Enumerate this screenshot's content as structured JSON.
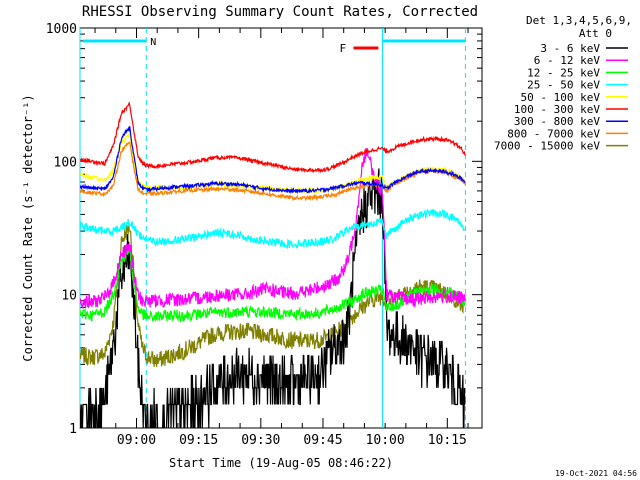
{
  "chart_data": {
    "type": "line",
    "title": "RHESSI Observing Summary Count Rates, Corrected",
    "xlabel": "Start Time (19-Aug-05 08:46:22)",
    "ylabel": "Corrected Count Rate (s⁻¹ detector⁻¹)",
    "y_scale": "log",
    "ylim": [
      1,
      1000
    ],
    "y_ticks": [
      "1",
      "10",
      "100",
      "1000"
    ],
    "x_ticks": [
      "09:00",
      "09:15",
      "09:30",
      "09:45",
      "10:00",
      "10:15"
    ],
    "xlim_minutes_after_start": [
      0,
      97
    ],
    "legend_header": [
      "Det 1,3,4,5,6,9,",
      "Att 0"
    ],
    "legend_position": "right",
    "footer_date": "19-Oct-2021 04:56",
    "annotations": {
      "night_label": "N",
      "flare_label": "F",
      "night_bars_minutes": [
        [
          0,
          16
        ],
        [
          73,
          93
        ]
      ],
      "flare_bar_minutes": [
        66,
        72
      ],
      "night_color": "#00e5ff",
      "flare_color": "#ff0000"
    },
    "series": [
      {
        "name": "3 - 6 keV",
        "color": "#000000",
        "x": [
          0,
          3,
          6,
          8,
          10,
          12,
          13,
          14,
          15,
          16,
          18,
          20,
          22,
          25,
          28,
          30,
          32,
          35,
          38,
          40,
          42,
          45,
          48,
          50,
          52,
          55,
          58,
          60,
          62,
          64,
          65,
          66,
          68,
          70,
          72,
          73,
          74,
          75,
          77,
          80,
          82,
          85,
          88,
          90,
          92,
          93
        ],
        "y": [
          1.2,
          1.3,
          1.6,
          4,
          14,
          20,
          9,
          3,
          1.5,
          1,
          1.2,
          1.1,
          1.3,
          1.4,
          1.5,
          1.8,
          2,
          2.3,
          2.5,
          2.6,
          2.5,
          2.4,
          2.2,
          2.1,
          2.2,
          2.3,
          2.6,
          3.5,
          4.2,
          5,
          7,
          15,
          40,
          55,
          57,
          55,
          5.5,
          5,
          4.8,
          4.2,
          3.4,
          3.2,
          2.8,
          2.4,
          1.7,
          1.4
        ]
      },
      {
        "name": "6 - 12 keV",
        "color": "#ff00ff",
        "x": [
          0,
          3,
          6,
          8,
          10,
          12,
          13,
          14,
          15,
          16,
          18,
          20,
          22,
          25,
          28,
          30,
          32,
          35,
          38,
          40,
          42,
          45,
          48,
          50,
          52,
          55,
          58,
          60,
          62,
          64,
          65,
          66,
          67,
          68,
          69,
          70,
          71,
          72,
          73,
          74,
          75,
          77,
          80,
          82,
          85,
          88,
          90,
          92,
          93
        ],
        "y": [
          9,
          8.8,
          9.5,
          12,
          20,
          24,
          14,
          10,
          9,
          9,
          9,
          9,
          9.2,
          9.2,
          9.4,
          9.6,
          9.8,
          10,
          10,
          10,
          10.5,
          11,
          10.5,
          10.2,
          10.3,
          10.6,
          11.5,
          12,
          13,
          16,
          20,
          28,
          45,
          90,
          120,
          100,
          75,
          65,
          62,
          10,
          9.8,
          9.5,
          9.2,
          9.3,
          9.6,
          9.8,
          9.6,
          9.5,
          9
        ]
      },
      {
        "name": "12 - 25 keV",
        "color": "#00ff00",
        "x": [
          0,
          3,
          6,
          8,
          10,
          12,
          13,
          14,
          15,
          16,
          18,
          20,
          22,
          25,
          28,
          30,
          32,
          35,
          38,
          40,
          42,
          45,
          48,
          50,
          52,
          55,
          58,
          60,
          62,
          64,
          66,
          68,
          70,
          72,
          73,
          74,
          75,
          77,
          80,
          82,
          85,
          88,
          90,
          92,
          93
        ],
        "y": [
          7.2,
          7,
          7.5,
          10,
          18,
          22,
          12,
          8,
          7.2,
          6.8,
          6.8,
          6.9,
          7,
          7,
          7.1,
          7.2,
          7.3,
          7.4,
          7.4,
          7.5,
          7.4,
          7.4,
          7.3,
          7.2,
          7.1,
          7.2,
          7.3,
          7.6,
          8,
          8.5,
          9,
          10,
          10.5,
          10.7,
          10.8,
          7.8,
          8,
          8.5,
          10,
          10.5,
          11,
          10.8,
          10.2,
          9,
          8.6
        ]
      },
      {
        "name": "25 - 50 keV",
        "color": "#00ffff",
        "x": [
          0,
          3,
          6,
          8,
          10,
          12,
          13,
          14,
          15,
          16,
          18,
          20,
          22,
          25,
          28,
          30,
          32,
          35,
          38,
          40,
          42,
          45,
          48,
          50,
          52,
          55,
          58,
          60,
          62,
          64,
          66,
          68,
          70,
          72,
          73,
          74,
          75,
          77,
          80,
          82,
          85,
          88,
          90,
          92,
          93
        ],
        "y": [
          33,
          31,
          30,
          30,
          32,
          35,
          32,
          29,
          27,
          26,
          25,
          25,
          25.5,
          26,
          27,
          28,
          29,
          29,
          28,
          27,
          26,
          25,
          24.5,
          24,
          24,
          24.5,
          25,
          25.5,
          27,
          30,
          32,
          33,
          34,
          35,
          36,
          27,
          30,
          33,
          38,
          40,
          41,
          40,
          38,
          34,
          30
        ]
      },
      {
        "name": "50 - 100 keV",
        "color": "#ffff00",
        "x": [
          0,
          3,
          6,
          8,
          10,
          12,
          13,
          14,
          15,
          16,
          18,
          20,
          22,
          25,
          28,
          30,
          32,
          35,
          38,
          40,
          42,
          45,
          48,
          50,
          52,
          55,
          58,
          60,
          62,
          64,
          66,
          68,
          70,
          72,
          73,
          74,
          75,
          77,
          80,
          82,
          85,
          88,
          90,
          92,
          93
        ],
        "y": [
          80,
          75,
          72,
          85,
          140,
          160,
          100,
          72,
          66,
          64,
          63,
          63,
          63,
          64,
          65,
          66,
          67,
          67,
          66,
          65,
          64,
          63,
          62,
          61,
          60,
          60,
          60,
          61,
          63,
          66,
          70,
          73,
          75,
          76,
          76,
          64,
          67,
          72,
          80,
          85,
          88,
          86,
          82,
          75,
          70
        ]
      },
      {
        "name": "100 - 300 keV",
        "color": "#ff0000",
        "x": [
          0,
          3,
          6,
          8,
          10,
          12,
          13,
          14,
          15,
          16,
          18,
          20,
          22,
          25,
          28,
          30,
          32,
          35,
          38,
          40,
          42,
          45,
          48,
          50,
          52,
          55,
          58,
          60,
          62,
          64,
          66,
          68,
          70,
          72,
          73,
          74,
          75,
          77,
          80,
          82,
          85,
          88,
          90,
          92,
          93
        ],
        "y": [
          103,
          100,
          96,
          130,
          230,
          270,
          170,
          110,
          97,
          93,
          92,
          93,
          95,
          97,
          100,
          103,
          106,
          107,
          106,
          104,
          100,
          96,
          92,
          89,
          87,
          86,
          86,
          88,
          93,
          100,
          108,
          115,
          120,
          124,
          125,
          118,
          122,
          130,
          140,
          145,
          148,
          145,
          138,
          125,
          112
        ]
      },
      {
        "name": "300 - 800 keV",
        "color": "#0000ff",
        "x": [
          0,
          3,
          6,
          8,
          10,
          12,
          13,
          14,
          15,
          16,
          18,
          20,
          22,
          25,
          28,
          30,
          32,
          35,
          38,
          40,
          42,
          45,
          48,
          50,
          52,
          55,
          58,
          60,
          62,
          64,
          66,
          68,
          70,
          72,
          73,
          74,
          75,
          77,
          80,
          82,
          85,
          88,
          90,
          92,
          93
        ],
        "y": [
          65,
          63,
          62,
          75,
          150,
          180,
          110,
          70,
          63,
          61,
          62,
          63,
          64,
          65,
          66,
          67,
          68,
          68,
          67,
          66,
          64,
          62,
          61,
          60,
          60,
          60,
          61,
          62,
          64,
          66,
          68,
          69,
          68,
          67,
          66,
          62,
          66,
          72,
          80,
          84,
          85,
          84,
          80,
          74,
          70
        ]
      },
      {
        "name": "800 - 7000 keV",
        "color": "#ff8000",
        "x": [
          0,
          3,
          6,
          8,
          10,
          12,
          13,
          14,
          15,
          16,
          18,
          20,
          22,
          25,
          28,
          30,
          32,
          35,
          38,
          40,
          42,
          45,
          48,
          50,
          52,
          55,
          58,
          60,
          62,
          64,
          66,
          68,
          70,
          72,
          73,
          74,
          75,
          77,
          80,
          82,
          85,
          88,
          90,
          92,
          93
        ],
        "y": [
          60,
          58,
          57,
          65,
          120,
          140,
          90,
          62,
          58,
          57,
          57,
          58,
          59,
          60,
          61,
          61,
          62,
          62,
          61,
          60,
          59,
          57,
          55,
          54,
          53,
          53,
          54,
          55,
          57,
          60,
          63,
          65,
          66,
          66,
          65,
          60,
          64,
          70,
          78,
          83,
          85,
          83,
          78,
          72,
          68
        ]
      },
      {
        "name": "7000 - 15000 keV",
        "color": "#808000",
        "x": [
          0,
          3,
          6,
          8,
          10,
          12,
          13,
          14,
          15,
          16,
          18,
          20,
          22,
          25,
          28,
          30,
          32,
          35,
          38,
          40,
          42,
          45,
          48,
          50,
          52,
          55,
          58,
          60,
          62,
          64,
          66,
          68,
          70,
          72,
          73,
          74,
          75,
          77,
          80,
          82,
          85,
          88,
          90,
          92,
          93
        ],
        "y": [
          3.5,
          3.4,
          3.6,
          6,
          25,
          33,
          15,
          6,
          4,
          3.5,
          3.2,
          3.3,
          3.5,
          3.8,
          4.2,
          4.6,
          5,
          5.2,
          5.3,
          5.3,
          5.2,
          5,
          4.8,
          4.6,
          4.5,
          4.5,
          4.6,
          4.8,
          5.2,
          6,
          7,
          8,
          9,
          9.5,
          9.8,
          8.5,
          9,
          10,
          11,
          11.5,
          11.2,
          10.5,
          9.5,
          8.5,
          7.5
        ]
      }
    ]
  }
}
